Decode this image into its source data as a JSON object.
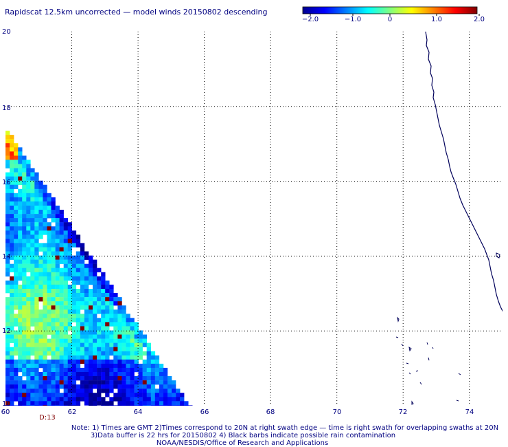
{
  "title": "Rapidscat 12.5km uncorrected — model winds 20150802 descending",
  "colorbar": {
    "tick_labels": [
      "−2.0",
      "−1.0",
      "0",
      "1.0",
      "2.0"
    ],
    "range": [
      -2.0,
      2.0
    ]
  },
  "axes": {
    "lon_ticks": [
      "60",
      "62",
      "64",
      "66",
      "68",
      "70",
      "72",
      "74"
    ],
    "lat_ticks": [
      "20",
      "18",
      "16",
      "14",
      "12",
      "10"
    ],
    "lon_range": [
      60,
      75
    ],
    "lat_range": [
      10,
      20
    ]
  },
  "time_label": "D:13",
  "notes": [
    "Note: 1) Times are GMT 2)Times correspond to 20N at right swath edge — time is right swath for overlapping swaths at 20N",
    "3)Data buffer is 22 hrs for 20150802 4) Black barbs indicate possible rain contamination",
    "NOAA/NESDIS/Office of Research and Applications"
  ],
  "colors": {
    "coastline": "#00005a",
    "grid": "#000000",
    "text": "#000080",
    "time_label": "#800000",
    "colorbar_stops": [
      "#00008f",
      "#0000ff",
      "#00ffff",
      "#ffff00",
      "#ff0000",
      "#800000"
    ]
  }
}
